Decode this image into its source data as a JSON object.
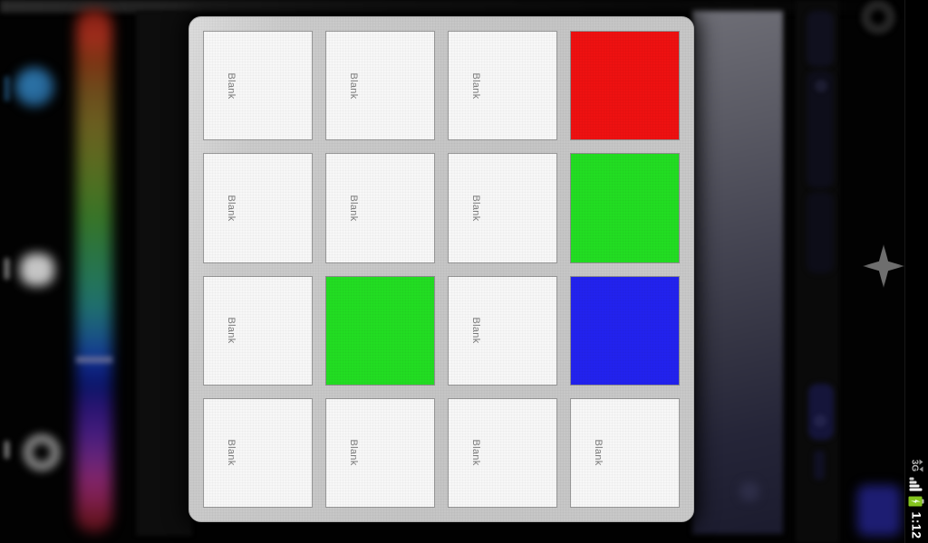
{
  "dialog": {
    "name": "saved-colors-dialog",
    "cells": [
      {
        "label": "Blank",
        "color": ""
      },
      {
        "label": "Blank",
        "color": ""
      },
      {
        "label": "Blank",
        "color": ""
      },
      {
        "label": "",
        "color": "#ee1111"
      },
      {
        "label": "Blank",
        "color": ""
      },
      {
        "label": "Blank",
        "color": ""
      },
      {
        "label": "Blank",
        "color": ""
      },
      {
        "label": "",
        "color": "#22dd22"
      },
      {
        "label": "Blank",
        "color": ""
      },
      {
        "label": "",
        "color": "#22dd22"
      },
      {
        "label": "Blank",
        "color": ""
      },
      {
        "label": "",
        "color": "#2222ee"
      },
      {
        "label": "Blank",
        "color": ""
      },
      {
        "label": "Blank",
        "color": ""
      },
      {
        "label": "Blank",
        "color": ""
      },
      {
        "label": "Blank",
        "color": ""
      }
    ]
  },
  "status_bar": {
    "network_label": "3G",
    "time": "1:12",
    "icons": [
      "mobile-data-3g-icon",
      "signal-strength-icon",
      "battery-charging-icon"
    ]
  },
  "background": {
    "left_toolbar_icons": [
      "brush-icon",
      "palette-icon",
      "ring-icon"
    ],
    "right_icons": [
      "circle-button-icon",
      "sparkle-icon",
      "blue-tile-icon"
    ],
    "slider": "hue-slider"
  },
  "colors": {
    "saved_red": "#ee1111",
    "saved_green": "#22dd22",
    "saved_blue": "#2222ee",
    "panel_gray": "#c7c7c7",
    "cell_bg": "#f7f7f7",
    "battery_green": "#84c41e"
  }
}
